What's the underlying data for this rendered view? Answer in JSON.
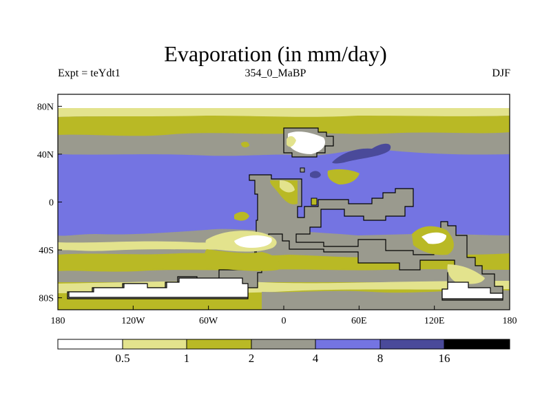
{
  "title": "Evaporation (in mm/day)",
  "left_string": "Expt = teYdt1",
  "center_string": "354_0_MaBP",
  "right_string": "DJF",
  "colors": {
    "lt05": "#ffffff",
    "b05_1": "#e3e38d",
    "b1_2": "#b9b925",
    "b2_4": "#9a9a8e",
    "b4_8": "#7474e2",
    "b8_16": "#4a4a9a",
    "gt16": "#000000"
  },
  "map": {
    "lat_labels": [
      "80N",
      "40N",
      "0",
      "40S",
      "80S"
    ],
    "lon_labels": [
      "180",
      "120W",
      "60W",
      "0",
      "60E",
      "120E",
      "180"
    ],
    "lat_range": [
      -90,
      90
    ],
    "lon_range": [
      -180,
      180
    ],
    "lat_ticks": [
      80,
      40,
      0,
      -40,
      -80
    ],
    "lon_ticks": [
      -180,
      -120,
      -60,
      0,
      60,
      120,
      180
    ]
  },
  "colorbar": {
    "levels": [
      "0.5",
      "1",
      "2",
      "4",
      "8",
      "16"
    ]
  }
}
